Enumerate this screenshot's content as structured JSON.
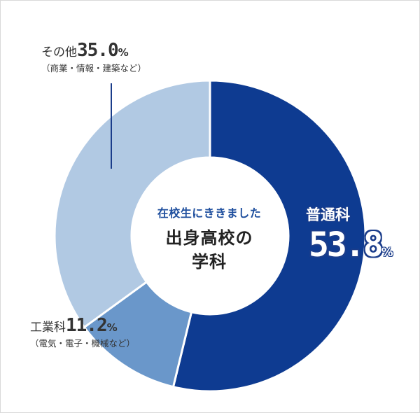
{
  "chart_data": {
    "type": "pie",
    "center_label": {
      "subtitle": "在校生にききました",
      "title_line1": "出身高校の",
      "title_line2": "学科"
    },
    "slices": [
      {
        "name": "普通科",
        "value": 53.8,
        "value_text": "53.8",
        "unit": "%",
        "note": "",
        "color": "#0e3b91"
      },
      {
        "name": "工業科",
        "value": 11.2,
        "value_text": "11.2",
        "unit": "%",
        "note": "（電気・電子・機械など）",
        "color": "#6a97ca"
      },
      {
        "name": "その他",
        "value": 35.0,
        "value_text": "35.0",
        "unit": "%",
        "note": "（商業・情報・建築など）",
        "color": "#b1c9e3"
      }
    ],
    "leader_line_color": "#1a3c8a"
  }
}
